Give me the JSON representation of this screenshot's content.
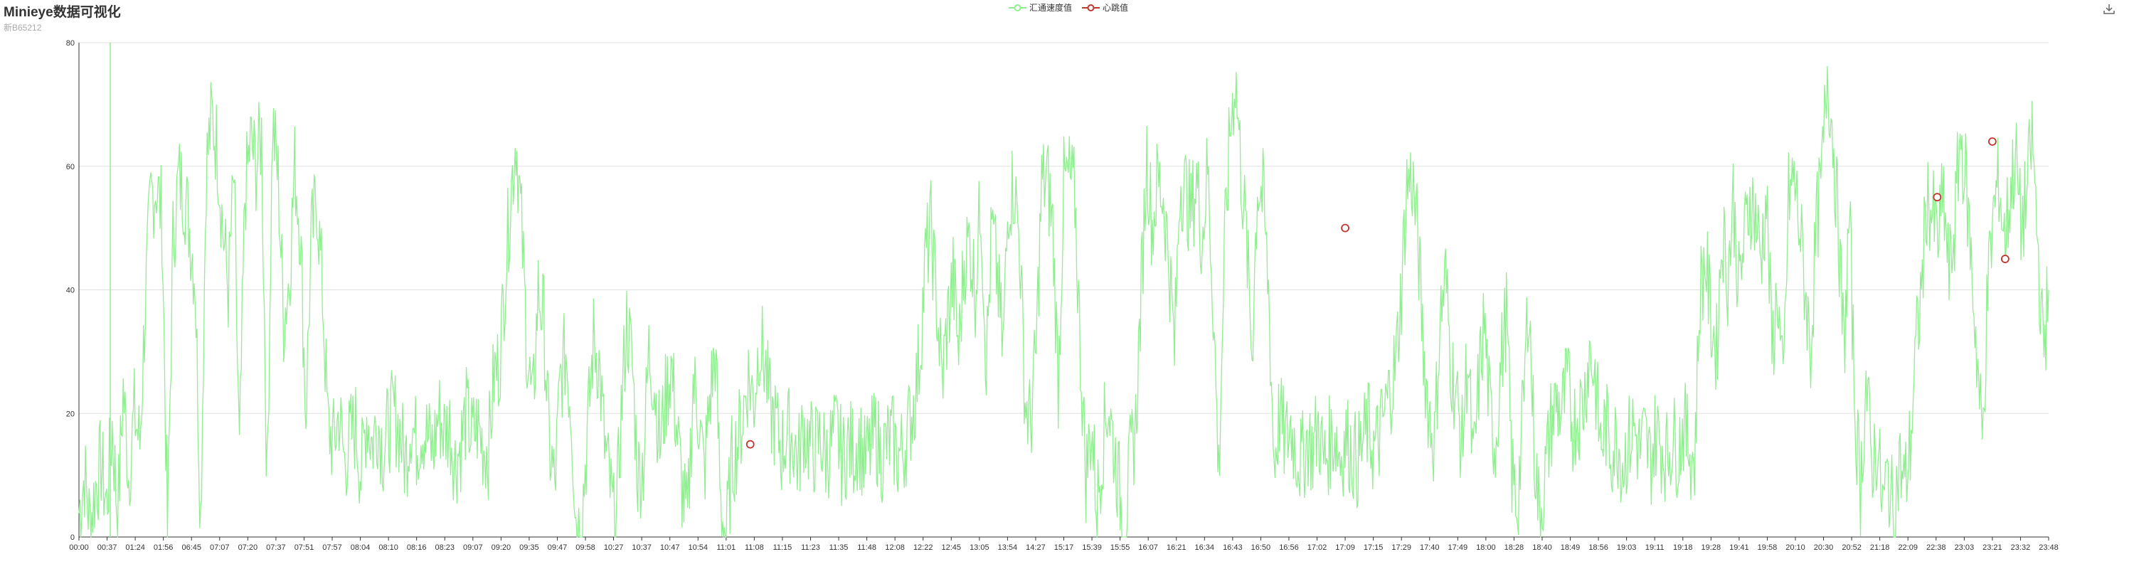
{
  "title": "Minieye数据可视化",
  "subtitle": "新B65212",
  "toolbox": {
    "icon": "download-icon"
  },
  "colors": {
    "speed": "#90ee90",
    "heartbeat": "#c23531",
    "grid": "#e0e0e0",
    "axis": "#333333"
  },
  "chart_data": {
    "type": "line",
    "legend": [
      "汇通速度值",
      "心跳值"
    ],
    "ylim": [
      0,
      80
    ],
    "yticks": [
      0,
      20,
      40,
      60,
      80
    ],
    "xticks": [
      "00:00",
      "00:37",
      "01:24",
      "01:56",
      "06:45",
      "07:07",
      "07:20",
      "07:37",
      "07:51",
      "07:57",
      "08:04",
      "08:10",
      "08:16",
      "08:23",
      "09:07",
      "09:20",
      "09:35",
      "09:47",
      "09:58",
      "10:27",
      "10:37",
      "10:47",
      "10:54",
      "11:01",
      "11:08",
      "11:15",
      "11:23",
      "11:35",
      "11:48",
      "12:08",
      "12:22",
      "12:45",
      "13:05",
      "13:54",
      "14:27",
      "15:17",
      "15:39",
      "15:55",
      "16:07",
      "16:21",
      "16:34",
      "16:43",
      "16:50",
      "16:56",
      "17:02",
      "17:09",
      "17:15",
      "17:29",
      "17:40",
      "17:49",
      "18:00",
      "18:28",
      "18:40",
      "18:49",
      "18:56",
      "19:03",
      "19:11",
      "19:18",
      "19:28",
      "19:41",
      "19:58",
      "20:10",
      "20:30",
      "20:52",
      "21:18",
      "22:09",
      "22:38",
      "23:03",
      "23:21",
      "23:32",
      "23:48"
    ],
    "series": [
      {
        "name": "汇通速度值",
        "values": [
          4,
          10,
          2,
          8,
          12,
          5,
          18,
          3,
          24,
          10,
          20,
          15,
          38,
          55,
          57,
          52,
          0,
          48,
          58,
          56,
          50,
          42,
          3,
          60,
          68,
          63,
          50,
          40,
          58,
          12,
          55,
          64,
          60,
          65,
          8,
          67,
          58,
          35,
          42,
          60,
          50,
          20,
          48,
          55,
          40,
          18,
          15,
          20,
          12,
          16,
          18,
          10,
          20,
          15,
          19,
          14,
          18,
          20,
          17,
          12,
          19,
          15,
          18,
          16,
          14,
          20,
          17,
          18,
          12,
          15,
          20,
          16,
          18,
          15,
          14,
          26,
          28,
          42,
          55,
          65,
          50,
          30,
          20,
          40,
          35,
          15,
          8,
          25,
          30,
          20,
          0,
          5,
          18,
          32,
          28,
          15,
          8,
          0,
          20,
          35,
          28,
          10,
          12,
          30,
          25,
          15,
          22,
          28,
          18,
          8,
          2,
          25,
          20,
          10,
          22,
          30,
          5,
          0,
          12,
          15,
          20,
          26,
          22,
          32,
          28,
          20,
          18,
          14,
          17,
          16,
          12,
          18,
          15,
          14,
          16,
          13,
          15,
          17,
          12,
          15,
          14,
          16,
          12,
          14,
          17,
          13,
          15,
          16,
          13,
          14,
          18,
          22,
          30,
          45,
          50,
          38,
          25,
          35,
          42,
          30,
          45,
          48,
          40,
          55,
          28,
          50,
          42,
          30,
          55,
          57,
          48,
          22,
          18,
          30,
          57,
          58,
          50,
          25,
          57,
          58,
          55,
          30,
          10,
          18,
          5,
          15,
          22,
          15,
          8,
          0,
          12,
          18,
          40,
          62,
          50,
          58,
          55,
          45,
          30,
          58,
          56,
          52,
          58,
          48,
          60,
          38,
          10,
          45,
          65,
          75,
          60,
          48,
          30,
          57,
          55,
          40,
          12,
          20,
          15,
          18,
          14,
          12,
          16,
          14,
          18,
          12,
          15,
          17,
          13,
          16,
          14,
          12,
          15,
          18,
          14,
          16,
          20,
          24,
          28,
          40,
          57,
          58,
          48,
          30,
          20,
          15,
          35,
          42,
          28,
          22,
          15,
          30,
          10,
          25,
          35,
          20,
          15,
          28,
          36,
          10,
          5,
          20,
          40,
          15,
          3,
          10,
          18,
          22,
          20,
          25,
          18,
          20,
          22,
          30,
          26,
          15,
          18,
          14,
          16,
          12,
          15,
          18,
          14,
          16,
          12,
          17,
          15,
          13,
          16,
          14,
          18,
          15,
          12,
          40,
          45,
          35,
          30,
          50,
          42,
          55,
          40,
          48,
          55,
          52,
          45,
          55,
          30,
          40,
          22,
          55,
          58,
          50,
          40,
          30,
          50,
          58,
          76,
          65,
          50,
          30,
          52,
          20,
          8,
          25,
          12,
          15,
          5,
          10,
          3,
          12,
          8,
          15,
          30,
          40,
          55,
          52,
          48,
          55,
          42,
          50,
          65,
          58,
          45,
          30,
          15,
          40,
          52,
          58,
          48,
          55,
          62,
          50,
          55,
          65,
          48,
          30,
          40
        ]
      },
      {
        "name": "心跳值",
        "points": [
          {
            "time": "11:07",
            "value": 15
          },
          {
            "time": "17:09",
            "value": 50
          },
          {
            "time": "22:39",
            "value": 55
          },
          {
            "time": "23:21",
            "value": 64
          },
          {
            "time": "23:26",
            "value": 45
          }
        ]
      }
    ]
  }
}
